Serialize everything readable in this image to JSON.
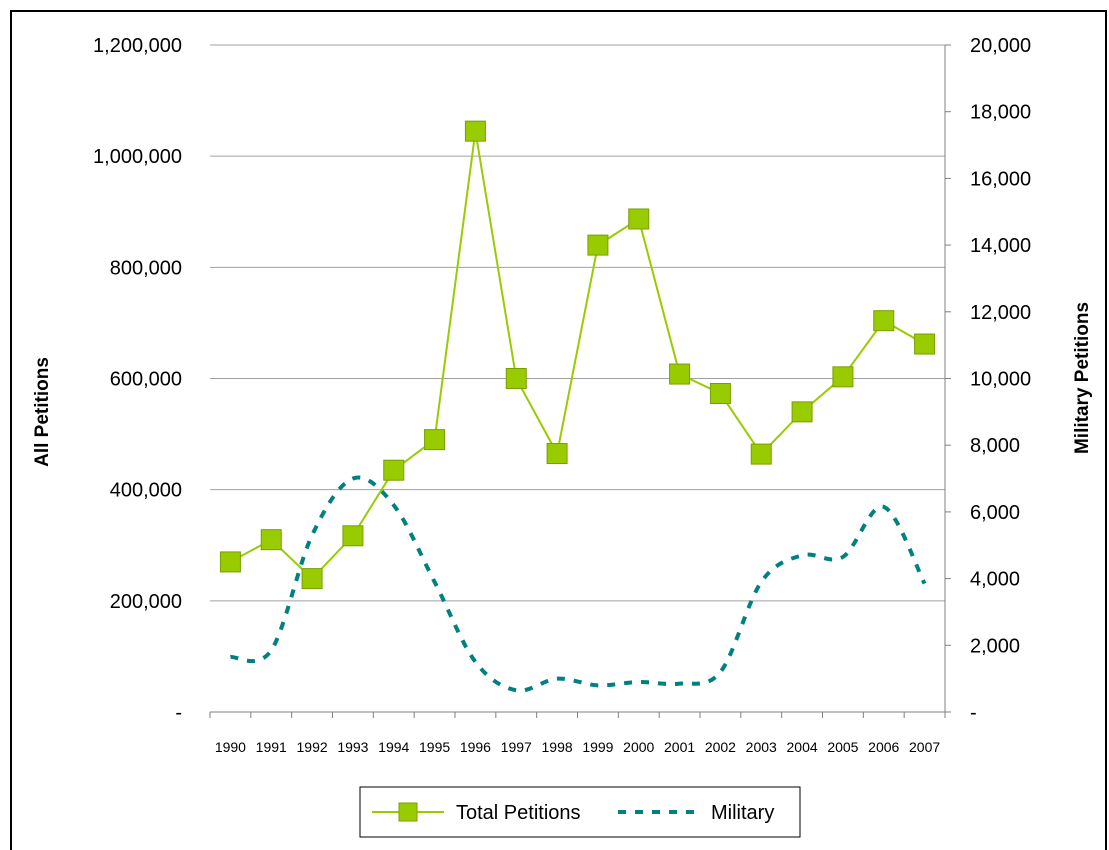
{
  "chart_data": {
    "type": "line",
    "categories": [
      "1990",
      "1991",
      "1992",
      "1993",
      "1994",
      "1995",
      "1996",
      "1997",
      "1998",
      "1999",
      "2000",
      "2001",
      "2002",
      "2003",
      "2004",
      "2005",
      "2006",
      "2007"
    ],
    "series": [
      {
        "name": "Total Petitions",
        "axis": "left",
        "color": "#99cc00",
        "marker": "square",
        "values": [
          270000,
          310000,
          240000,
          317000,
          435000,
          490000,
          1045000,
          600000,
          465000,
          840000,
          887000,
          608000,
          573000,
          464000,
          540000,
          603000,
          704000,
          662000
        ]
      },
      {
        "name": "Military",
        "axis": "right",
        "color": "#008080",
        "style": "dashed",
        "values": [
          1650,
          1850,
          5300,
          7000,
          6200,
          3900,
          1500,
          650,
          1000,
          800,
          900,
          850,
          1200,
          3900,
          4700,
          4650,
          6150,
          3850
        ]
      }
    ],
    "ylabel": "All Petitions",
    "y2label": "Military Petitions",
    "ylim": [
      0,
      1200000
    ],
    "y2lim": [
      0,
      20000
    ],
    "yticks": [
      "-",
      "200,000",
      "400,000",
      "600,000",
      "800,000",
      "1,000,000",
      "1,200,000"
    ],
    "y2ticks": [
      "-",
      "2,000",
      "4,000",
      "6,000",
      "8,000",
      "10,000",
      "12,000",
      "14,000",
      "16,000",
      "18,000",
      "20,000"
    ],
    "grid": true,
    "legend": "bottom"
  }
}
